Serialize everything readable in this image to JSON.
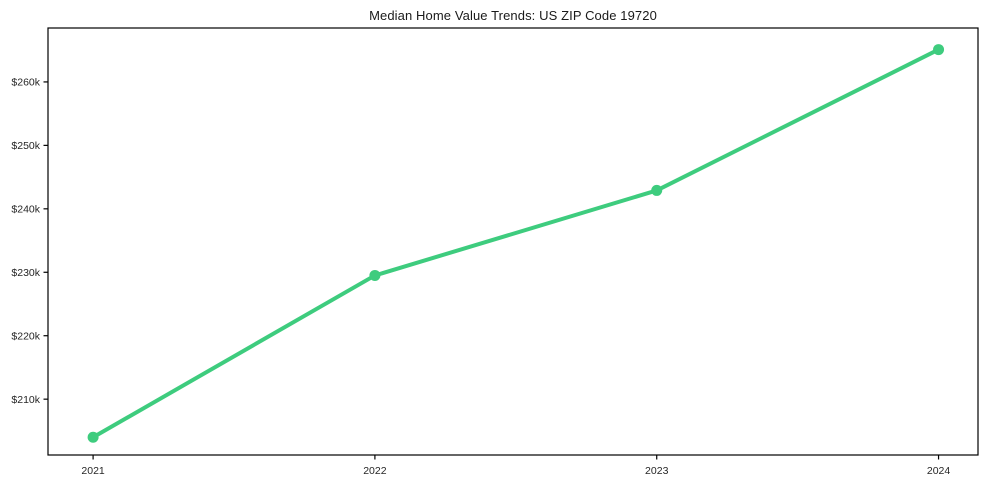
{
  "chart_data": {
    "type": "line",
    "title": "Median Home Value Trends: US ZIP Code 19720",
    "x": [
      "2021",
      "2022",
      "2023",
      "2024"
    ],
    "values": [
      204000,
      229500,
      242900,
      265100
    ],
    "xlabel": "",
    "ylabel": "",
    "xlim": [
      -0.16,
      3.14
    ],
    "ylim": [
      201200,
      268500
    ],
    "yticks": {
      "values": [
        210000,
        220000,
        230000,
        240000,
        250000,
        260000
      ],
      "labels": [
        "$210k",
        "$220k",
        "$230k",
        "$240k",
        "$250k",
        "$260k"
      ]
    },
    "grid": false,
    "legend": "none",
    "line_color": "#3ecc7e",
    "marker": "circle",
    "line_width": 4,
    "marker_radius": 5.5,
    "frame_color": "#000000",
    "text_color": "#262626",
    "background_color": "#ffffff"
  }
}
